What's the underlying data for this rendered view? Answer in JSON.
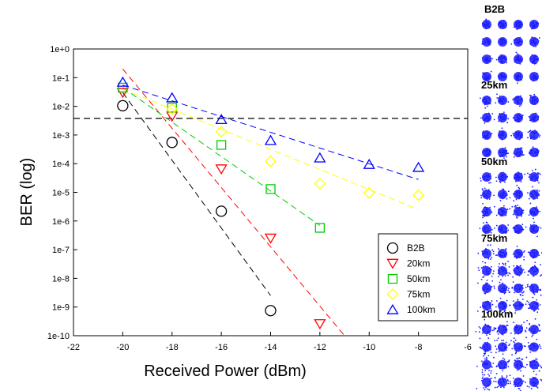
{
  "chart_data": {
    "type": "scatter",
    "title": "",
    "xlabel": "Received Power (dBm)",
    "ylabel": "BER (log)",
    "xlim": [
      -22,
      -6
    ],
    "ylim_log10": [
      -10,
      0
    ],
    "y_scale": "log",
    "x_ticks": [
      {
        "value": -22,
        "label": "-22"
      },
      {
        "value": -20,
        "label": "-20"
      },
      {
        "value": -18,
        "label": "-18"
      },
      {
        "value": -16,
        "label": "-16"
      },
      {
        "value": -14,
        "label": "-14"
      },
      {
        "value": -12,
        "label": "-12"
      },
      {
        "value": -10,
        "label": "-10"
      },
      {
        "value": -8,
        "label": "-8"
      },
      {
        "value": -6,
        "label": "-6"
      }
    ],
    "y_ticks": [
      {
        "exp": 0,
        "label": "1e+0"
      },
      {
        "exp": -1,
        "label": "1e-1"
      },
      {
        "exp": -2,
        "label": "1e-2"
      },
      {
        "exp": -3,
        "label": "1e-3"
      },
      {
        "exp": -4,
        "label": "1e-4"
      },
      {
        "exp": -5,
        "label": "1e-5"
      },
      {
        "exp": -6,
        "label": "1e-6"
      },
      {
        "exp": -7,
        "label": "1e-7"
      },
      {
        "exp": -8,
        "label": "1e-8"
      },
      {
        "exp": -9,
        "label": "1e-9"
      },
      {
        "exp": -10,
        "label": "1e-10"
      }
    ],
    "threshold": {
      "y": 0.0038,
      "style": "dashed",
      "color": "#000000"
    },
    "grid": false,
    "legend_position": "bottom-right",
    "series": [
      {
        "name": "B2B",
        "marker": "circle",
        "color": "#000000",
        "x": [
          -20,
          -18,
          -16,
          -14
        ],
        "y": [
          0.0105,
          0.00055,
          2.2e-06,
          7.5e-10
        ],
        "fit": {
          "x": [
            -20,
            -14
          ],
          "y": [
            0.03,
            2.5e-09
          ]
        }
      },
      {
        "name": "20km",
        "marker": "triangle-down",
        "color": "#ff0000",
        "x": [
          -20,
          -18,
          -16,
          -14,
          -12
        ],
        "y": [
          0.03,
          0.0045,
          6.5e-05,
          2.5e-07,
          2.6e-10
        ],
        "fit": {
          "x": [
            -20,
            -11
          ],
          "y": [
            0.2,
            1e-10
          ]
        }
      },
      {
        "name": "50km",
        "marker": "square",
        "color": "#00cc00",
        "x": [
          -20,
          -18,
          -16,
          -14,
          -12
        ],
        "y": [
          0.045,
          0.009,
          0.00045,
          1.3e-05,
          5.8e-07
        ],
        "fit": {
          "x": [
            -20,
            -12
          ],
          "y": [
            0.045,
            7e-07
          ]
        }
      },
      {
        "name": "75km",
        "marker": "diamond",
        "color": "#ffff00",
        "x": [
          -18,
          -16,
          -14,
          -12,
          -10,
          -8
        ],
        "y": [
          0.008,
          0.0013,
          0.00012,
          2e-05,
          9.5e-06,
          8e-06
        ],
        "fit": {
          "x": [
            -20,
            -8
          ],
          "y": [
            0.04,
            2.5e-06
          ]
        }
      },
      {
        "name": "100km",
        "marker": "triangle-up",
        "color": "#0000ff",
        "x": [
          -20,
          -18,
          -16,
          -14,
          -12,
          -10,
          -8
        ],
        "y": [
          0.07,
          0.02,
          0.0035,
          0.00065,
          0.00016,
          9.5e-05,
          7.5e-05
        ],
        "fit": {
          "x": [
            -20,
            -8
          ],
          "y": [
            0.055,
            2.8e-05
          ]
        }
      }
    ]
  },
  "constellations": [
    {
      "label": "B2B",
      "spread": 0.28
    },
    {
      "label": "25km",
      "spread": 0.34
    },
    {
      "label": "50km",
      "spread": 0.4
    },
    {
      "label": "75km",
      "spread": 0.48
    },
    {
      "label": "100km",
      "spread": 0.58
    }
  ],
  "colors": {
    "constellation": "#1a1aff",
    "axis": "#000000"
  }
}
